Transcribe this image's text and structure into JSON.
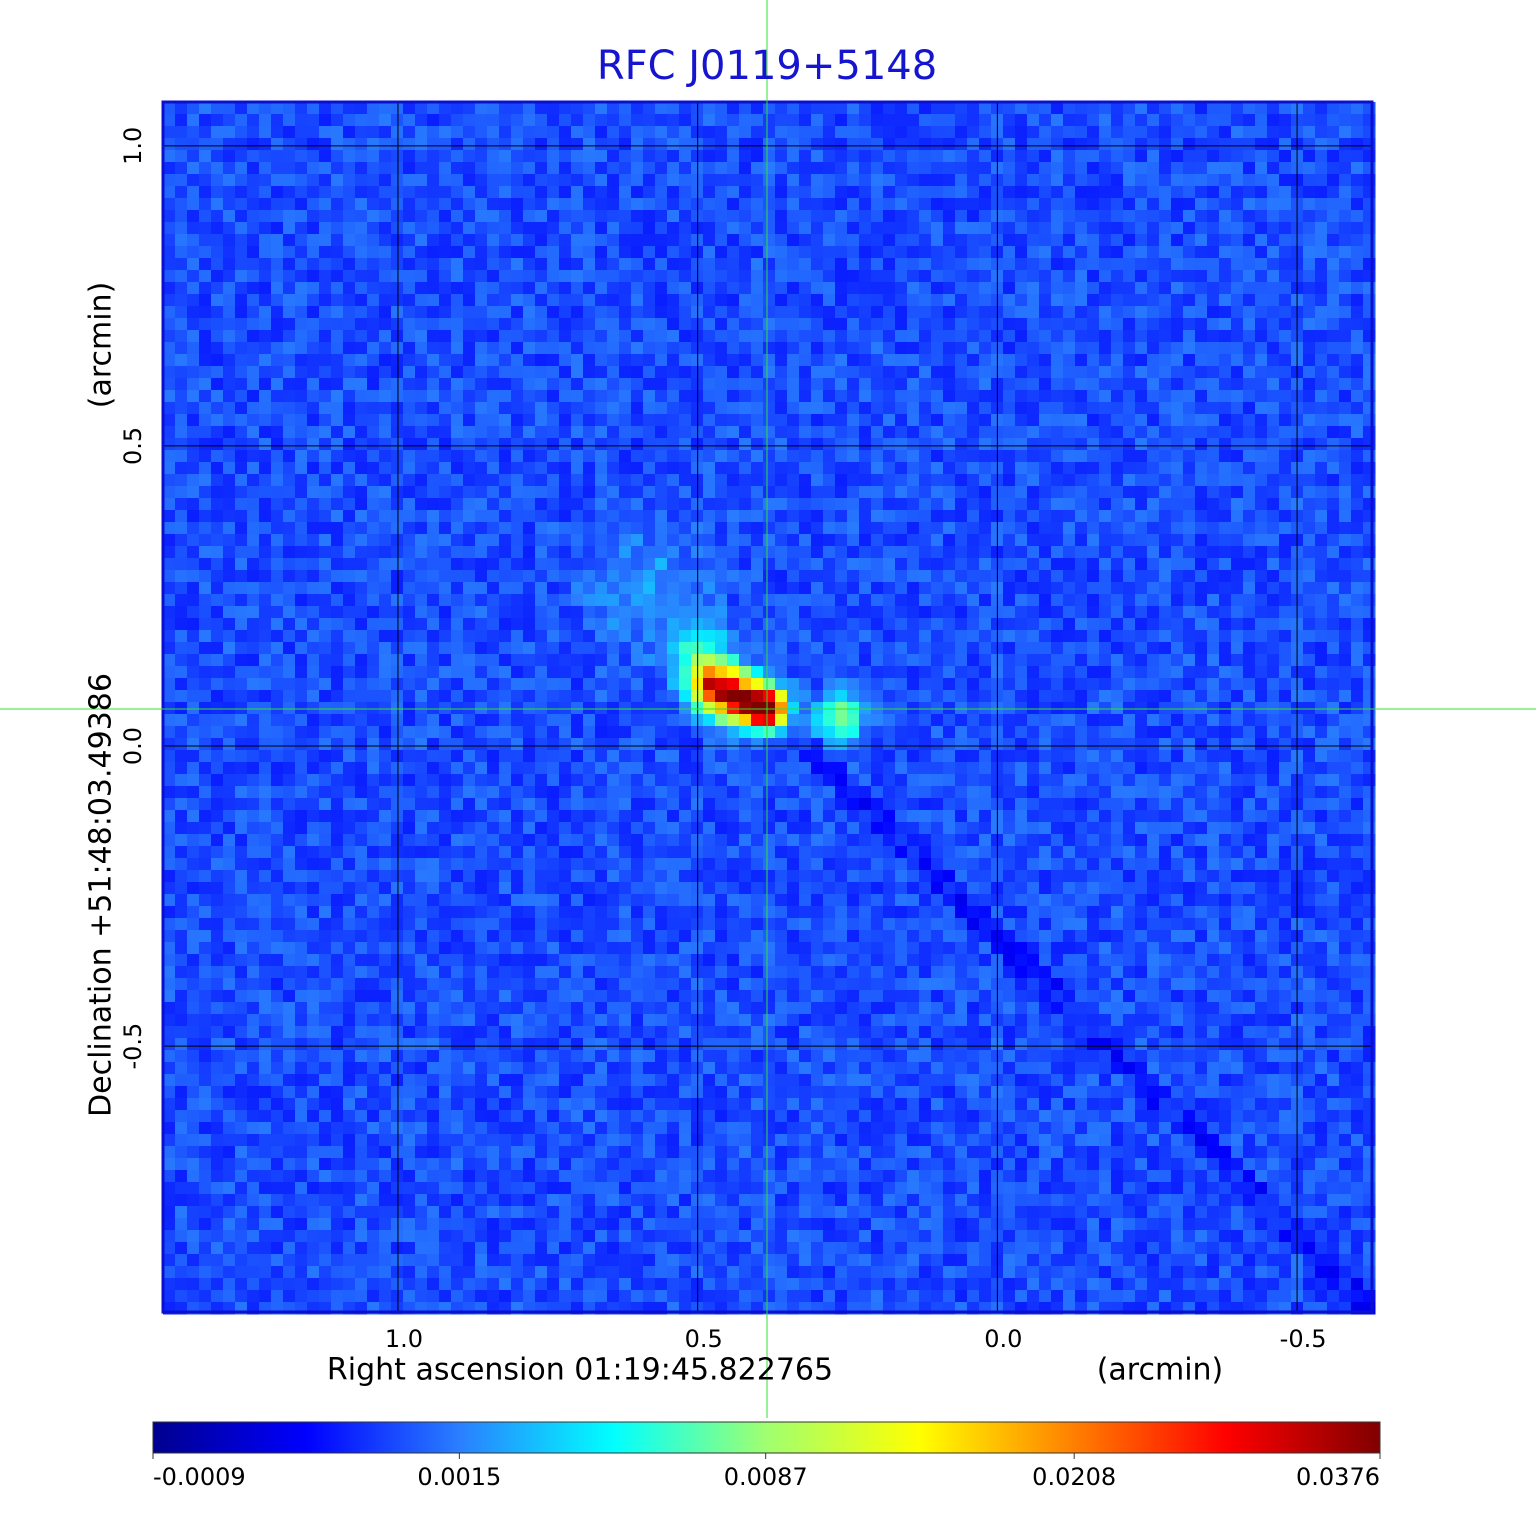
{
  "chart_data": {
    "type": "image",
    "title": "RFC J0119+5148",
    "xlabel": "Right ascension  01:19:45.822765",
    "xunit": "(arcmin)",
    "ylabel": "Declination  +51:48:03.49386",
    "yunit": "(arcmin)",
    "xlim": [
      1.392,
      -0.625
    ],
    "xticks": [
      {
        "value": 1,
        "label": "1.0"
      },
      0.5,
      {
        "value": 0,
        "label": "0.0"
      },
      -0.5
    ],
    "ylim": [
      -0.943,
      1.073
    ],
    "yticks": [
      {
        "value": 1,
        "label": "1.0"
      },
      0.5,
      {
        "value": 0,
        "label": "0.0"
      },
      -0.5
    ],
    "grid": true,
    "colorbar": {
      "scale": "sqrt",
      "clim": [
        -0.0009,
        0.0376
      ],
      "ticks": [
        -0.0009,
        0.0015,
        0.0087,
        0.0208,
        0.0376
      ],
      "colormap": [
        "#00008f",
        "#0000ff",
        "#2a7fff",
        "#00ffff",
        "#a0ff70",
        "#ffff00",
        "#ff8000",
        "#ff0000",
        "#800000"
      ]
    }
  }
}
